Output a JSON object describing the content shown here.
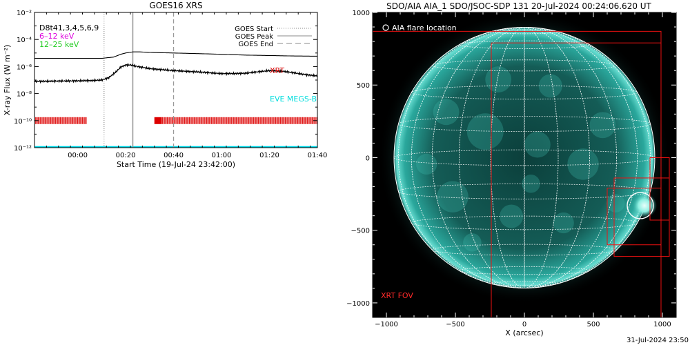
{
  "footer_timestamp": "31-Jul-2024 23:50",
  "chart_data": [
    {
      "type": "line",
      "title": "GOES16 XRS",
      "xlabel": "Start Time (19-Jul-24 23:42:00)",
      "ylabel": "X-ray Flux (W m⁻²)",
      "yscale": "log",
      "ylim": [
        1e-12,
        0.01
      ],
      "xlim_minutes": [
        -18,
        100
      ],
      "x_ticks": [
        {
          "m": 0,
          "label": "00:00"
        },
        {
          "m": 20,
          "label": "00:20"
        },
        {
          "m": 40,
          "label": "00:40"
        },
        {
          "m": 60,
          "label": "01:00"
        },
        {
          "m": 80,
          "label": "01:20"
        },
        {
          "m": 100,
          "label": "01:40"
        }
      ],
      "y_ticks": [
        {
          "value": 1e-12,
          "label": "10⁻¹²"
        },
        {
          "value": 1e-10,
          "label": "10⁻¹⁰"
        },
        {
          "value": 1e-08,
          "label": "10⁻⁸"
        },
        {
          "value": 1e-06,
          "label": "10⁻⁶"
        },
        {
          "value": 0.0001,
          "label": "10⁻⁴"
        },
        {
          "value": 0.01,
          "label": "10⁻²"
        }
      ],
      "top_left_labels": [
        {
          "text": "D8t41,3,4,5,6,9",
          "color": "#000000"
        },
        {
          "text": "6–12 keV",
          "color": "#dd00dd"
        },
        {
          "text": "12–25 keV",
          "color": "#22cc22"
        }
      ],
      "legend": [
        {
          "label": "GOES Start",
          "style": "dotted",
          "color": "#888888"
        },
        {
          "label": "GOES Peak",
          "style": "solid",
          "color": "#888888"
        },
        {
          "label": "GOES End",
          "style": "dashed",
          "color": "#888888"
        }
      ],
      "event_lines": [
        {
          "name": "GOES Start",
          "m": 11
        },
        {
          "name": "GOES Peak",
          "m": 23
        },
        {
          "name": "GOES End",
          "m": 40
        }
      ],
      "series": [
        {
          "color": "#000000",
          "x": [
            -18,
            0,
            10,
            15,
            18,
            20,
            23,
            26,
            30,
            40,
            50,
            60,
            70,
            80,
            90,
            100
          ],
          "y": [
            4e-06,
            4e-06,
            4e-06,
            5e-06,
            8e-06,
            1e-05,
            1.2e-05,
            1.2e-05,
            1.1e-05,
            1e-05,
            9e-06,
            8e-06,
            7e-06,
            6.5e-06,
            6e-06,
            5.8e-06
          ]
        },
        {
          "color": "#000000",
          "x": [
            -18,
            -5,
            5,
            10,
            13,
            16,
            18,
            20,
            22,
            25,
            30,
            40,
            50,
            60,
            65,
            70,
            75,
            80,
            85,
            90,
            95,
            100
          ],
          "y": [
            8e-08,
            8.5e-08,
            9e-08,
            1e-07,
            1.5e-07,
            4e-07,
            9e-07,
            1.3e-06,
            1.3e-06,
            1e-06,
            7e-07,
            5e-07,
            4e-07,
            3e-07,
            3e-07,
            3.2e-07,
            4e-07,
            5e-07,
            4.5e-07,
            3.5e-07,
            2.5e-07,
            2e-07
          ]
        }
      ],
      "annotations": [
        {
          "text": "XRT",
          "color": "#dd0000"
        },
        {
          "text": "EVE MEGS-B",
          "color": "#00dddd"
        }
      ],
      "xrt_coverage": {
        "color": "#dd0000",
        "level": 1e-10,
        "ranges": [
          [
            -18,
            4
          ],
          [
            32,
            35
          ],
          [
            35,
            100
          ]
        ]
      },
      "eve_level": 1e-12
    },
    {
      "type": "image",
      "title": "SDO/AIA AIA_1 SDO/JSOC-SDP 131 20-Jul-2024 00:24:06.620 UT",
      "xlabel": "X (arcsec)",
      "xlim": [
        -1100,
        1100
      ],
      "ylim": [
        -1100,
        1000
      ],
      "x_ticks": [
        -1000,
        -500,
        0,
        500,
        1000
      ],
      "y_ticks": [
        1000,
        500,
        0,
        -500,
        -1000
      ],
      "tick_labels_x": [
        "−1000",
        "−500",
        "0",
        "500",
        "1000"
      ],
      "tick_labels_y": [
        "1000",
        "500",
        "0",
        "−500",
        "−1000"
      ],
      "disk_radius_arcsec": 945,
      "legend_label": "AIA flare location",
      "fov_label": "XRT FOV",
      "flare_location": [
        840,
        -330
      ],
      "xrt_fov_boxes": [
        [
          -1100,
          -1100,
          990,
          870
        ],
        [
          -240,
          -1100,
          990,
          790
        ],
        [
          650,
          -680,
          1050,
          -140
        ],
        [
          600,
          -600,
          990,
          -210
        ],
        [
          910,
          -430,
          1050,
          0
        ]
      ]
    }
  ]
}
